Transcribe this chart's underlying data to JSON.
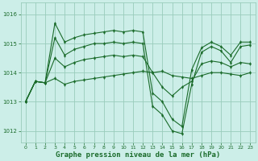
{
  "bg_color": "#cceee8",
  "grid_color": "#99ccbb",
  "line_color": "#1a6b2a",
  "xlabel": "Graphe pression niveau de la mer (hPa)",
  "xlabel_fontsize": 6.5,
  "xlim": [
    -0.5,
    23.5
  ],
  "ylim": [
    1011.6,
    1016.4
  ],
  "yticks": [
    1012,
    1013,
    1014,
    1015,
    1016
  ],
  "xticks": [
    0,
    1,
    2,
    3,
    4,
    5,
    6,
    7,
    8,
    9,
    10,
    11,
    12,
    13,
    14,
    15,
    16,
    17,
    18,
    19,
    20,
    21,
    22,
    23
  ],
  "series": [
    [
      1013.0,
      1013.7,
      1013.65,
      1013.8,
      1013.6,
      1013.7,
      1013.75,
      1013.8,
      1013.85,
      1013.9,
      1013.95,
      1014.0,
      1014.05,
      1014.0,
      1014.05,
      1013.9,
      1013.85,
      1013.8,
      1013.9,
      1014.0,
      1014.0,
      1013.95,
      1013.9,
      1014.0
    ],
    [
      1013.0,
      1013.7,
      1013.65,
      1014.5,
      1014.2,
      1014.35,
      1014.45,
      1014.5,
      1014.55,
      1014.6,
      1014.55,
      1014.6,
      1014.55,
      1014.0,
      1013.5,
      1013.2,
      1013.5,
      1013.7,
      1014.3,
      1014.4,
      1014.35,
      1014.2,
      1014.35,
      1014.3
    ],
    [
      1013.0,
      1013.7,
      1013.65,
      1015.2,
      1014.6,
      1014.8,
      1014.9,
      1015.0,
      1015.0,
      1015.05,
      1015.0,
      1015.05,
      1015.0,
      1012.85,
      1012.55,
      1012.0,
      1011.9,
      1013.6,
      1014.7,
      1014.9,
      1014.75,
      1014.35,
      1014.9,
      1014.95
    ],
    [
      1013.0,
      1013.7,
      1013.65,
      1015.7,
      1015.05,
      1015.2,
      1015.3,
      1015.35,
      1015.4,
      1015.45,
      1015.4,
      1015.45,
      1015.4,
      1013.3,
      1013.0,
      1012.4,
      1012.15,
      1014.1,
      1014.85,
      1015.05,
      1014.9,
      1014.6,
      1015.05,
      1015.05
    ]
  ]
}
